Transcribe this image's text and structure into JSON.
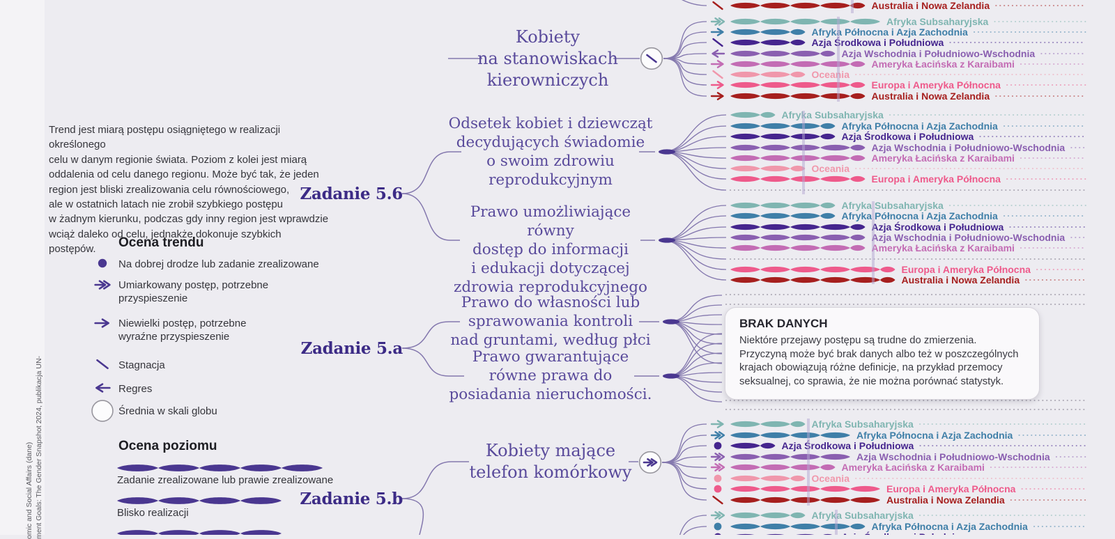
{
  "colors": {
    "background": "#edecf1",
    "accent_purple": "#4a3790",
    "task_label": "#3c2b86",
    "indicator_text": "#594a9b",
    "fan_line": "#8478ae",
    "vline": "#b4a8d3",
    "dotted_grey": "#9d98a6",
    "box_border": "#d8d5dc"
  },
  "intro_text": "Trend jest miarą postępu osiągniętego w realizacji określonego\ncelu w danym regionie świata. Poziom z kolei jest miarą\noddalenia od celu danego regionu. Może być tak, że jeden\nregion jest bliski zrealizowania celu równościowego,\nale w ostatnich latach nie zrobił szybkiego postępu\nw żadnym kierunku, podczas gdy inny region jest wprawdzie\nwciąż daleko od celu, jednakże dokonuje szybkich postępów.",
  "source_note": {
    "line1": "ment Goals: The Gender Snapshot 2024, publikacja UN-",
    "line2": "omic and Social Affairs (dane)"
  },
  "legend_trend": {
    "title": "Ocena trendu",
    "items": [
      {
        "icon": "on-track",
        "label": "Na dobrej drodze lub zadanie zrealizowane"
      },
      {
        "icon": "moderate",
        "label": "Umiarkowany postęp, potrzebne\nprzyspieszenie"
      },
      {
        "icon": "slight",
        "label": "Niewielki postęp, potrzebne\nwyraźne przyspieszenie"
      },
      {
        "icon": "stagnation",
        "label": "Stagnacja"
      },
      {
        "icon": "regress",
        "label": "Regres"
      },
      {
        "icon": "global-average",
        "label": "Średnia w skali globu"
      }
    ]
  },
  "legend_level": {
    "title": "Ocena poziomu",
    "items": [
      {
        "beads": 5,
        "label": "Zadanie zrealizowane lub prawie zrealizowane"
      },
      {
        "beads": 4,
        "label": "Blisko realizacji"
      },
      {
        "beads": 4,
        "label": ""
      }
    ]
  },
  "no_data_box": {
    "title": "BRAK DANYCH",
    "text": "Niektóre przejawy postępu są trudne do zmierzenia. Przyczyną może być brak danych albo też w poszczególnych krajach obowiązują różne definicje, na przykład przemocy seksualnej, co sprawia, że nie można porównać statystyk."
  },
  "regions": [
    {
      "name": "Afryka Subsaharyjska",
      "color": "#7fb5b1"
    },
    {
      "name": "Afryka Północna i Azja Zachodnia",
      "color": "#3f7fa8"
    },
    {
      "name": "Azja Środkowa i Południowa",
      "color": "#45258e"
    },
    {
      "name": "Azja Wschodnia i Południowo-Wschodnia",
      "color": "#8a5fb0"
    },
    {
      "name": "Ameryka Łacińska z Karaibami",
      "color": "#c36cb4"
    },
    {
      "name": "Oceania",
      "color": "#f097ab"
    },
    {
      "name": "Europa i Ameryka Północna",
      "color": "#ee5a8b"
    },
    {
      "name": "Australia i Nowa Zelandia",
      "color": "#a61f1e"
    }
  ],
  "chart_data": {
    "type": "diagram-trend-level",
    "tasks": [
      {
        "label": "Zadanie 5.6"
      },
      {
        "label": "Zadanie 5.a"
      },
      {
        "label": "Zadanie 5.b"
      }
    ],
    "blocks": [
      {
        "id": "partial-top",
        "task": null,
        "indicator": null,
        "global_trend": null,
        "rows": [
          {
            "region": 7,
            "trend": "stagnation",
            "level_beads": 4.5
          }
        ]
      },
      {
        "id": "women-managerial",
        "task": null,
        "indicator": "Kobiety\nna stanowiskach\nkierowniczych",
        "global_trend": "stagnation",
        "rows": [
          {
            "region": 0,
            "trend": "moderate",
            "level_beads": 5
          },
          {
            "region": 1,
            "trend": "slight",
            "level_beads": 2.5
          },
          {
            "region": 2,
            "trend": "stagnation",
            "level_beads": 2.5
          },
          {
            "region": 3,
            "trend": "regress",
            "level_beads": 3.5
          },
          {
            "region": 4,
            "trend": "slight",
            "level_beads": 4.5
          },
          {
            "region": 5,
            "trend": "stagnation",
            "level_beads": 2.5
          },
          {
            "region": 6,
            "trend": "slight",
            "level_beads": 4.5
          },
          {
            "region": 7,
            "trend": "slight",
            "level_beads": 4.5
          }
        ]
      },
      {
        "id": "reproductive-decisions",
        "task": "Zadanie 5.6",
        "indicator": "Odsetek kobiet i dziewcząt\ndecydujących świadomie\no swoim zdrowiu\nreprodukcyjnym",
        "global_trend": null,
        "rows": [
          {
            "region": 0,
            "trend": null,
            "level_beads": 1.5
          },
          {
            "region": 1,
            "trend": null,
            "level_beads": 3.5
          },
          {
            "region": 2,
            "trend": null,
            "level_beads": 3.5
          },
          {
            "region": 3,
            "trend": null,
            "level_beads": 4.5
          },
          {
            "region": 4,
            "trend": null,
            "level_beads": 4.5
          },
          {
            "region": 5,
            "trend": null,
            "level_beads": 2.5
          },
          {
            "region": 6,
            "trend": null,
            "level_beads": 4.5
          },
          {
            "region": 7,
            "trend": null,
            "level_beads": null
          }
        ]
      },
      {
        "id": "reproductive-law",
        "task": "Zadanie 5.6",
        "indicator": "Prawo umożliwiające równy\ndostęp do informacji\ni edukacji dotyczącej\nzdrowia reprodukcyjnego",
        "global_trend": null,
        "rows": [
          {
            "region": 0,
            "trend": null,
            "level_beads": 3.5
          },
          {
            "region": 1,
            "trend": null,
            "level_beads": 3.5
          },
          {
            "region": 2,
            "trend": null,
            "level_beads": 4.5
          },
          {
            "region": 3,
            "trend": null,
            "level_beads": 4.5
          },
          {
            "region": 4,
            "trend": null,
            "level_beads": 4.5
          },
          {
            "region": 5,
            "trend": null,
            "level_beads": null
          },
          {
            "region": 6,
            "trend": null,
            "level_beads": 5.5
          },
          {
            "region": 7,
            "trend": null,
            "level_beads": 5.5
          }
        ]
      },
      {
        "id": "land-rights",
        "task": "Zadanie 5.a",
        "indicator": "Prawo do własności lub\nsprawowania kontroli\nnad gruntami, według płci",
        "global_trend": null,
        "no_data": true,
        "rows": []
      },
      {
        "id": "property-law",
        "task": "Zadanie 5.a",
        "indicator": "Prawo gwarantujące\nrówne prawa do\nposiadania nieruchomości.",
        "global_trend": null,
        "no_data": true,
        "rows": []
      },
      {
        "id": "mobile-phone",
        "task": "Zadanie 5.b",
        "indicator": "Kobiety mające\ntelefon komórkowy",
        "global_trend": "moderate",
        "rows": [
          {
            "region": 0,
            "trend": "slight",
            "level_beads": 2.5
          },
          {
            "region": 1,
            "trend": "moderate",
            "level_beads": 4
          },
          {
            "region": 2,
            "trend": "on-track",
            "level_beads": 1.5
          },
          {
            "region": 3,
            "trend": "moderate",
            "level_beads": 4
          },
          {
            "region": 4,
            "trend": "moderate",
            "level_beads": 3.5
          },
          {
            "region": 5,
            "trend": "on-track",
            "level_beads": 2.5
          },
          {
            "region": 6,
            "trend": "on-track",
            "level_beads": 5
          },
          {
            "region": 7,
            "trend": "stagnation",
            "level_beads": 5
          }
        ]
      },
      {
        "id": "partial-bottom",
        "task": "Zadanie 5.b",
        "indicator": null,
        "global_trend": null,
        "rows": [
          {
            "region": 0,
            "trend": "moderate",
            "level_beads": 2.5
          },
          {
            "region": 1,
            "trend": "on-track",
            "level_beads": 4.5
          },
          {
            "region": 2,
            "trend": "on-track",
            "level_beads": 3.5
          }
        ]
      }
    ]
  }
}
